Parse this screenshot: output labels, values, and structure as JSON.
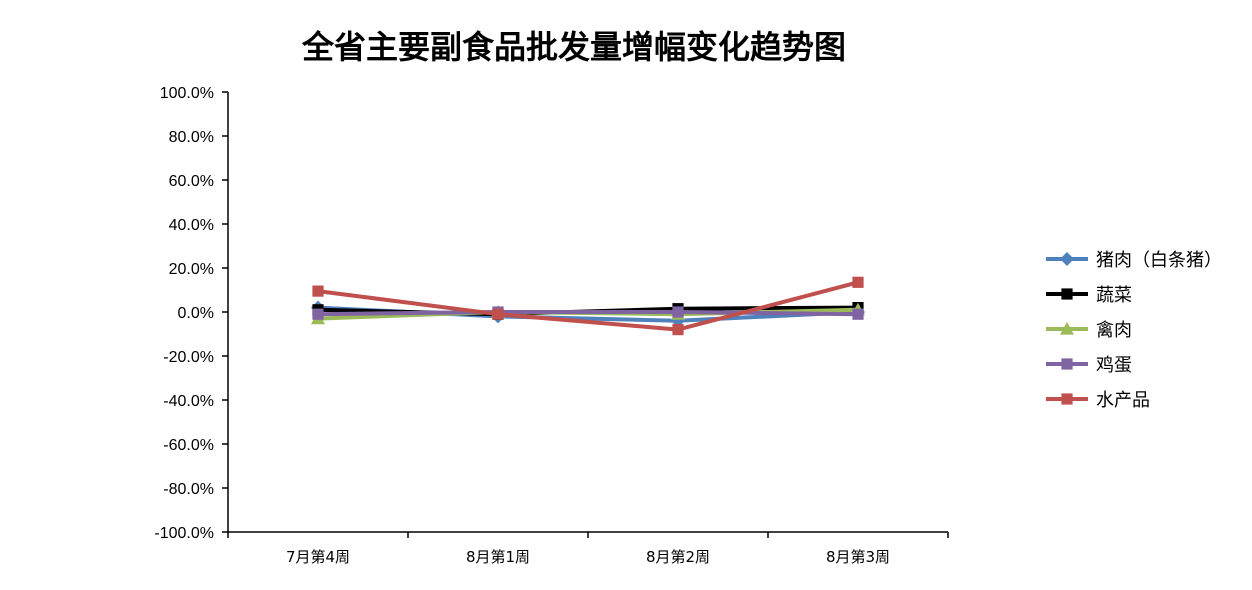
{
  "chart_data": {
    "type": "line",
    "title": "全省主要副食品批发量增幅变化趋势图",
    "categories": [
      "7月第4周",
      "8月第1周",
      "8月第2周",
      "8月第3周"
    ],
    "ylim": [
      -100,
      100
    ],
    "y_ticks": [
      "100.0%",
      "80.0%",
      "60.0%",
      "40.0%",
      "20.0%",
      "0.0%",
      "-20.0%",
      "-40.0%",
      "-60.0%",
      "-80.0%",
      "-100.0%"
    ],
    "y_tick_values": [
      100,
      80,
      60,
      40,
      20,
      0,
      -20,
      -40,
      -60,
      -80,
      -100
    ],
    "grid": false,
    "legend_position": "right",
    "series": [
      {
        "name": "猪肉（白条猪）",
        "values": [
          2.0,
          -2.0,
          -4.0,
          0.0
        ],
        "color": "#4F81BD",
        "marker": "diamond"
      },
      {
        "name": "蔬菜",
        "values": [
          1.0,
          -1.0,
          1.5,
          2.0
        ],
        "color": "#000000",
        "marker": "square"
      },
      {
        "name": "禽肉",
        "values": [
          -3.0,
          0.0,
          -1.0,
          1.0
        ],
        "color": "#9BBB59",
        "marker": "triangle"
      },
      {
        "name": "鸡蛋",
        "values": [
          -1.0,
          0.0,
          0.0,
          -1.0
        ],
        "color": "#8064A2",
        "marker": "square"
      },
      {
        "name": "水产品",
        "values": [
          9.5,
          -1.0,
          -8.0,
          13.5
        ],
        "color": "#C0504D",
        "marker": "square"
      }
    ]
  }
}
